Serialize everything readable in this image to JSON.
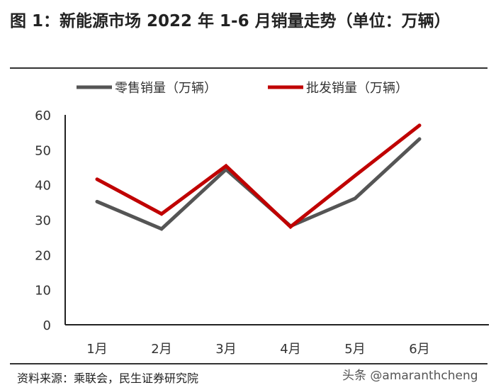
{
  "title": "图 1：新能源市场 2022 年 1-6 月销量走势（单位：万辆）",
  "source": "资料来源：乘联会，民生证券研究院",
  "watermark": "头条 @amaranthcheng",
  "chart_data": {
    "type": "line",
    "categories": [
      "1月",
      "2月",
      "3月",
      "4月",
      "5月",
      "6月"
    ],
    "ylim": [
      0,
      60
    ],
    "yticks": [
      0,
      10,
      20,
      30,
      40,
      50,
      60
    ],
    "grid": false,
    "legend": "top",
    "series": [
      {
        "name": "零售销量（万辆）",
        "color": "#555555",
        "values": [
          35.2,
          27.4,
          44.4,
          28.2,
          36.1,
          53.1
        ]
      },
      {
        "name": "批发销量（万辆）",
        "color": "#C00000",
        "values": [
          41.6,
          31.7,
          45.4,
          28.0,
          42.6,
          57.0
        ]
      }
    ]
  }
}
